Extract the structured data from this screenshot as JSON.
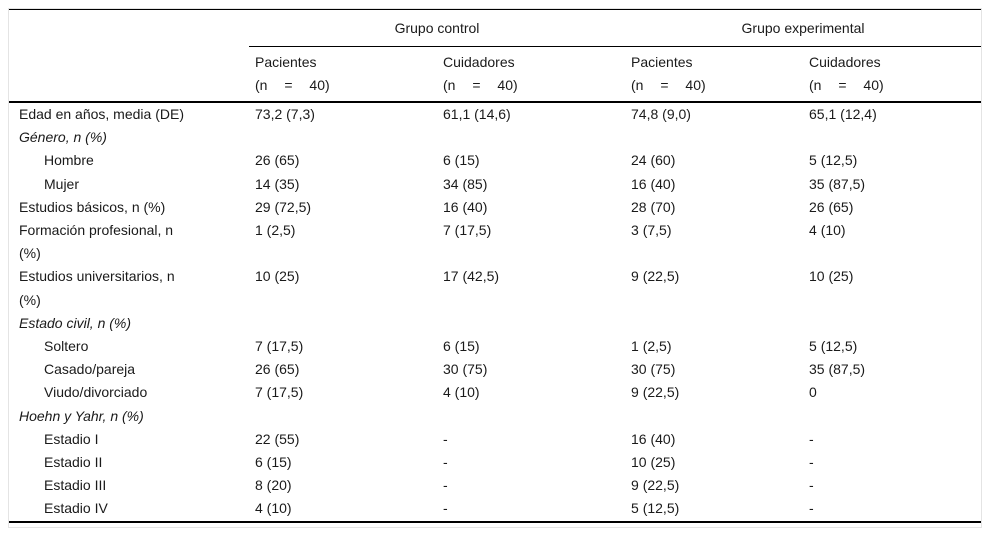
{
  "colors": {
    "rule": "#000000",
    "frame_border": "#e4e4e4",
    "text": "#1a1a1a",
    "background": "#ffffff"
  },
  "table": {
    "groups": [
      {
        "label": "Grupo control"
      },
      {
        "label": "Grupo experimental"
      }
    ],
    "subcolumns": [
      {
        "title": "Pacientes",
        "n": "(n = 40)"
      },
      {
        "title": "Cuidadores",
        "n": "(n = 40)"
      },
      {
        "title": "Pacientes",
        "n": "(n = 40)"
      },
      {
        "title": "Cuidadores",
        "n": "(n = 40)"
      }
    ],
    "rows": [
      {
        "label": "Edad en años, media (DE)",
        "category": false,
        "indent": false,
        "values": [
          "73,2 (7,3)",
          "61,1 (14,6)",
          "74,8 (9,0)",
          "65,1 (12,4)"
        ]
      },
      {
        "label": "Género, n (%)",
        "category": true,
        "indent": false,
        "values": [
          "",
          "",
          "",
          ""
        ]
      },
      {
        "label": "Hombre",
        "category": false,
        "indent": true,
        "values": [
          "26 (65)",
          "6 (15)",
          "24 (60)",
          "5 (12,5)"
        ]
      },
      {
        "label": "Mujer",
        "category": false,
        "indent": true,
        "values": [
          "14 (35)",
          "34 (85)",
          "16 (40)",
          "35 (87,5)"
        ]
      },
      {
        "label": "Estudios básicos, n (%)",
        "category": false,
        "indent": false,
        "values": [
          "29 (72,5)",
          "16 (40)",
          "28 (70)",
          "26 (65)"
        ]
      },
      {
        "label": "Formación profesional, n (%)",
        "category": false,
        "indent": false,
        "values": [
          "1 (2,5)",
          "7 (17,5)",
          "3 (7,5)",
          "4 (10)"
        ]
      },
      {
        "label": "Estudios universitarios, n (%)",
        "category": false,
        "indent": false,
        "values": [
          "10 (25)",
          "17 (42,5)",
          "9 (22,5)",
          "10 (25)"
        ]
      },
      {
        "label": "Estado civil, n (%)",
        "category": true,
        "indent": false,
        "values": [
          "",
          "",
          "",
          ""
        ]
      },
      {
        "label": "Soltero",
        "category": false,
        "indent": true,
        "values": [
          "7 (17,5)",
          "6 (15)",
          "1 (2,5)",
          "5 (12,5)"
        ]
      },
      {
        "label": "Casado/pareja",
        "category": false,
        "indent": true,
        "values": [
          "26 (65)",
          "30 (75)",
          "30 (75)",
          "35 (87,5)"
        ]
      },
      {
        "label": "Viudo/divorciado",
        "category": false,
        "indent": true,
        "values": [
          "7 (17,5)",
          "4 (10)",
          "9 (22,5)",
          "0"
        ]
      },
      {
        "label": "Hoehn y Yahr, n (%)",
        "category": true,
        "indent": false,
        "values": [
          "",
          "",
          "",
          ""
        ]
      },
      {
        "label": "Estadio I",
        "category": false,
        "indent": true,
        "values": [
          "22 (55)",
          "-",
          "16 (40)",
          "-"
        ]
      },
      {
        "label": "Estadio II",
        "category": false,
        "indent": true,
        "values": [
          "6 (15)",
          "-",
          "10 (25)",
          "-"
        ]
      },
      {
        "label": "Estadio III",
        "category": false,
        "indent": true,
        "values": [
          "8 (20)",
          "-",
          "9 (22,5)",
          "-"
        ]
      },
      {
        "label": "Estadio IV",
        "category": false,
        "indent": true,
        "values": [
          "4 (10)",
          "-",
          "5 (12,5)",
          "-"
        ]
      }
    ]
  }
}
